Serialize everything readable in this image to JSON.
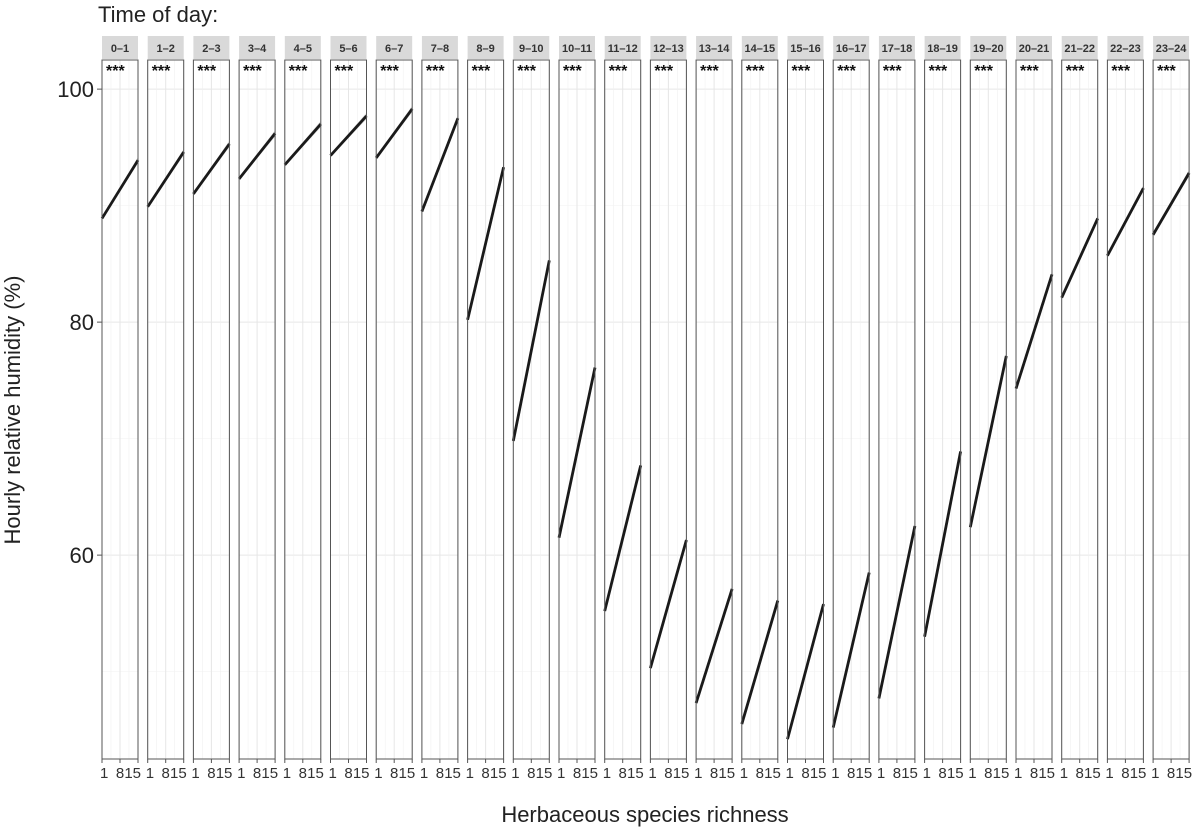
{
  "chart_data": {
    "type": "line",
    "title": "Time of day:",
    "xlabel": "Herbaceous species richness",
    "ylabel": "Hourly relative humidity (%)",
    "x_ticks": [
      "1",
      "8",
      "15"
    ],
    "xlim": [
      1,
      15
    ],
    "ylim": [
      42.5,
      102.5
    ],
    "y_ticks": [
      60,
      80,
      100
    ],
    "grid": true,
    "legend": "none",
    "line_color": "#1a1a1a",
    "ribbon_color": "#c8c8c8",
    "strip_color": "#d9d9d9",
    "significance_label": "***",
    "panels": [
      {
        "label": "0–1",
        "x": [
          1,
          15
        ],
        "y": [
          88.9,
          93.9
        ]
      },
      {
        "label": "1–2",
        "x": [
          1,
          15
        ],
        "y": [
          89.9,
          94.6
        ]
      },
      {
        "label": "2–3",
        "x": [
          1,
          15
        ],
        "y": [
          91.0,
          95.3
        ]
      },
      {
        "label": "3–4",
        "x": [
          1,
          15
        ],
        "y": [
          92.3,
          96.2
        ]
      },
      {
        "label": "4–5",
        "x": [
          1,
          15
        ],
        "y": [
          93.5,
          97.0
        ]
      },
      {
        "label": "5–6",
        "x": [
          1,
          15
        ],
        "y": [
          94.3,
          97.7
        ]
      },
      {
        "label": "6–7",
        "x": [
          1,
          15
        ],
        "y": [
          94.1,
          98.3
        ]
      },
      {
        "label": "7–8",
        "x": [
          1,
          15
        ],
        "y": [
          89.5,
          97.5
        ]
      },
      {
        "label": "8–9",
        "x": [
          1,
          15
        ],
        "y": [
          80.2,
          93.3
        ]
      },
      {
        "label": "9–10",
        "x": [
          1,
          15
        ],
        "y": [
          69.8,
          85.3
        ]
      },
      {
        "label": "10–11",
        "x": [
          1,
          15
        ],
        "y": [
          61.5,
          76.1
        ]
      },
      {
        "label": "11–12",
        "x": [
          1,
          15
        ],
        "y": [
          55.2,
          67.7
        ]
      },
      {
        "label": "12–13",
        "x": [
          1,
          15
        ],
        "y": [
          50.3,
          61.3
        ]
      },
      {
        "label": "13–14",
        "x": [
          1,
          15
        ],
        "y": [
          47.3,
          57.1
        ]
      },
      {
        "label": "14–15",
        "x": [
          1,
          15
        ],
        "y": [
          45.5,
          56.1
        ]
      },
      {
        "label": "15–16",
        "x": [
          1,
          15
        ],
        "y": [
          44.2,
          55.8
        ]
      },
      {
        "label": "16–17",
        "x": [
          1,
          15
        ],
        "y": [
          45.2,
          58.5
        ]
      },
      {
        "label": "17–18",
        "x": [
          1,
          15
        ],
        "y": [
          47.7,
          62.5
        ]
      },
      {
        "label": "18–19",
        "x": [
          1,
          15
        ],
        "y": [
          53.0,
          68.9
        ]
      },
      {
        "label": "19–20",
        "x": [
          1,
          15
        ],
        "y": [
          62.4,
          77.1
        ]
      },
      {
        "label": "20–21",
        "x": [
          1,
          15
        ],
        "y": [
          74.3,
          84.1
        ]
      },
      {
        "label": "21–22",
        "x": [
          1,
          15
        ],
        "y": [
          82.1,
          88.9
        ]
      },
      {
        "label": "22–23",
        "x": [
          1,
          15
        ],
        "y": [
          85.7,
          91.5
        ]
      },
      {
        "label": "23–24",
        "x": [
          1,
          15
        ],
        "y": [
          87.5,
          92.8
        ]
      }
    ]
  }
}
